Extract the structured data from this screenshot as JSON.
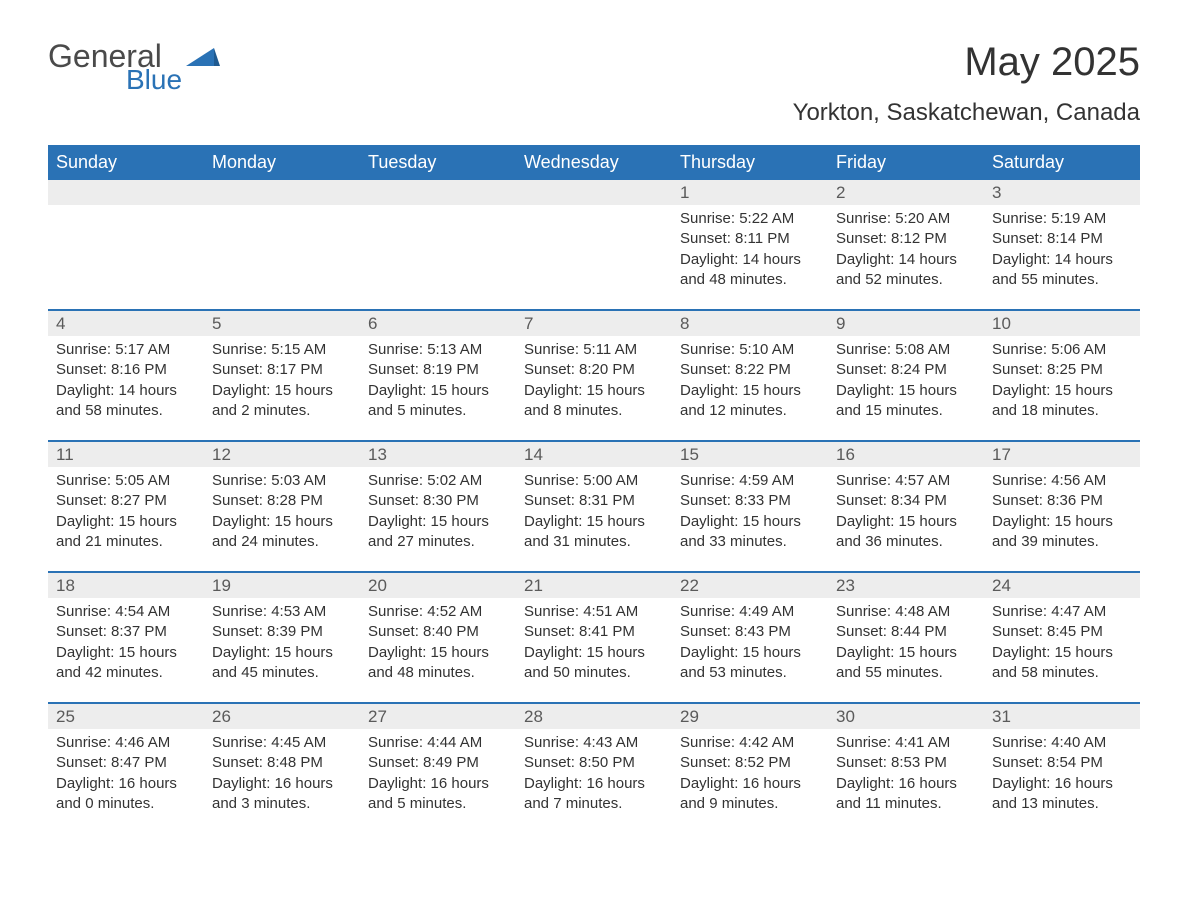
{
  "colors": {
    "header_bg": "#2a72b5",
    "header_text": "#ffffff",
    "daynum_bg": "#ededed",
    "daynum_text": "#5a5a5a",
    "body_text": "#333333",
    "logo_gray": "#4a4a4a",
    "logo_blue": "#2a72b5",
    "separator": "#2a72b5",
    "page_bg": "#ffffff"
  },
  "typography": {
    "font_family": "Arial, Helvetica, sans-serif",
    "month_title_size": 40,
    "location_size": 24,
    "header_cell_size": 18,
    "daynum_size": 17,
    "content_size": 15
  },
  "logo": {
    "line1": "General",
    "line2": "Blue"
  },
  "title": "May 2025",
  "location": "Yorkton, Saskatchewan, Canada",
  "day_headers": [
    "Sunday",
    "Monday",
    "Tuesday",
    "Wednesday",
    "Thursday",
    "Friday",
    "Saturday"
  ],
  "labels": {
    "sunrise": "Sunrise:",
    "sunset": "Sunset:",
    "daylight": "Daylight:"
  },
  "weeks": [
    [
      null,
      null,
      null,
      null,
      {
        "n": "1",
        "sunrise": "5:22 AM",
        "sunset": "8:11 PM",
        "daylight": "14 hours and 48 minutes."
      },
      {
        "n": "2",
        "sunrise": "5:20 AM",
        "sunset": "8:12 PM",
        "daylight": "14 hours and 52 minutes."
      },
      {
        "n": "3",
        "sunrise": "5:19 AM",
        "sunset": "8:14 PM",
        "daylight": "14 hours and 55 minutes."
      }
    ],
    [
      {
        "n": "4",
        "sunrise": "5:17 AM",
        "sunset": "8:16 PM",
        "daylight": "14 hours and 58 minutes."
      },
      {
        "n": "5",
        "sunrise": "5:15 AM",
        "sunset": "8:17 PM",
        "daylight": "15 hours and 2 minutes."
      },
      {
        "n": "6",
        "sunrise": "5:13 AM",
        "sunset": "8:19 PM",
        "daylight": "15 hours and 5 minutes."
      },
      {
        "n": "7",
        "sunrise": "5:11 AM",
        "sunset": "8:20 PM",
        "daylight": "15 hours and 8 minutes."
      },
      {
        "n": "8",
        "sunrise": "5:10 AM",
        "sunset": "8:22 PM",
        "daylight": "15 hours and 12 minutes."
      },
      {
        "n": "9",
        "sunrise": "5:08 AM",
        "sunset": "8:24 PM",
        "daylight": "15 hours and 15 minutes."
      },
      {
        "n": "10",
        "sunrise": "5:06 AM",
        "sunset": "8:25 PM",
        "daylight": "15 hours and 18 minutes."
      }
    ],
    [
      {
        "n": "11",
        "sunrise": "5:05 AM",
        "sunset": "8:27 PM",
        "daylight": "15 hours and 21 minutes."
      },
      {
        "n": "12",
        "sunrise": "5:03 AM",
        "sunset": "8:28 PM",
        "daylight": "15 hours and 24 minutes."
      },
      {
        "n": "13",
        "sunrise": "5:02 AM",
        "sunset": "8:30 PM",
        "daylight": "15 hours and 27 minutes."
      },
      {
        "n": "14",
        "sunrise": "5:00 AM",
        "sunset": "8:31 PM",
        "daylight": "15 hours and 31 minutes."
      },
      {
        "n": "15",
        "sunrise": "4:59 AM",
        "sunset": "8:33 PM",
        "daylight": "15 hours and 33 minutes."
      },
      {
        "n": "16",
        "sunrise": "4:57 AM",
        "sunset": "8:34 PM",
        "daylight": "15 hours and 36 minutes."
      },
      {
        "n": "17",
        "sunrise": "4:56 AM",
        "sunset": "8:36 PM",
        "daylight": "15 hours and 39 minutes."
      }
    ],
    [
      {
        "n": "18",
        "sunrise": "4:54 AM",
        "sunset": "8:37 PM",
        "daylight": "15 hours and 42 minutes."
      },
      {
        "n": "19",
        "sunrise": "4:53 AM",
        "sunset": "8:39 PM",
        "daylight": "15 hours and 45 minutes."
      },
      {
        "n": "20",
        "sunrise": "4:52 AM",
        "sunset": "8:40 PM",
        "daylight": "15 hours and 48 minutes."
      },
      {
        "n": "21",
        "sunrise": "4:51 AM",
        "sunset": "8:41 PM",
        "daylight": "15 hours and 50 minutes."
      },
      {
        "n": "22",
        "sunrise": "4:49 AM",
        "sunset": "8:43 PM",
        "daylight": "15 hours and 53 minutes."
      },
      {
        "n": "23",
        "sunrise": "4:48 AM",
        "sunset": "8:44 PM",
        "daylight": "15 hours and 55 minutes."
      },
      {
        "n": "24",
        "sunrise": "4:47 AM",
        "sunset": "8:45 PM",
        "daylight": "15 hours and 58 minutes."
      }
    ],
    [
      {
        "n": "25",
        "sunrise": "4:46 AM",
        "sunset": "8:47 PM",
        "daylight": "16 hours and 0 minutes."
      },
      {
        "n": "26",
        "sunrise": "4:45 AM",
        "sunset": "8:48 PM",
        "daylight": "16 hours and 3 minutes."
      },
      {
        "n": "27",
        "sunrise": "4:44 AM",
        "sunset": "8:49 PM",
        "daylight": "16 hours and 5 minutes."
      },
      {
        "n": "28",
        "sunrise": "4:43 AM",
        "sunset": "8:50 PM",
        "daylight": "16 hours and 7 minutes."
      },
      {
        "n": "29",
        "sunrise": "4:42 AM",
        "sunset": "8:52 PM",
        "daylight": "16 hours and 9 minutes."
      },
      {
        "n": "30",
        "sunrise": "4:41 AM",
        "sunset": "8:53 PM",
        "daylight": "16 hours and 11 minutes."
      },
      {
        "n": "31",
        "sunrise": "4:40 AM",
        "sunset": "8:54 PM",
        "daylight": "16 hours and 13 minutes."
      }
    ]
  ]
}
